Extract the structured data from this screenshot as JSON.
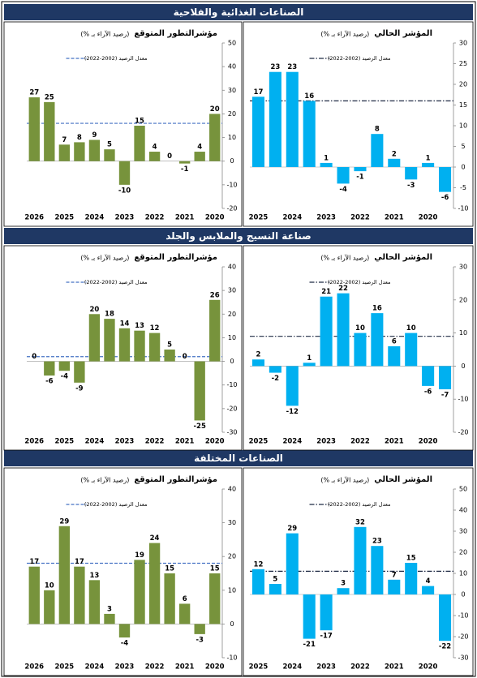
{
  "sections": [
    {
      "title": "الصناعات الغذائية والفلاحية"
    },
    {
      "title": "صناعة النسيج والملابس والجلد"
    },
    {
      "title": "الصناعات المختلفة"
    }
  ],
  "chart_data": [
    {
      "type": "bar",
      "title": "مؤشرالتطور المتوقع",
      "subtitle": "(رصيد الآراء بـ %)",
      "color": "#77933c",
      "categories": [
        "2026",
        null,
        "2025",
        null,
        "2024",
        null,
        "2023",
        null,
        "2022",
        null,
        "2021",
        null,
        "2020"
      ],
      "values": [
        27,
        25,
        7,
        8,
        9,
        5,
        -10,
        15,
        4,
        0,
        -1,
        4,
        20
      ],
      "ylim": [
        -20,
        50
      ],
      "yticks": [
        -20,
        -10,
        0,
        10,
        20,
        30,
        40,
        50
      ],
      "reference_line": {
        "name": "معدل الرصيد (2002-2022)",
        "value": 16,
        "color": "#4472c4",
        "style": "dashed"
      }
    },
    {
      "type": "bar",
      "title": "المؤشر الحالي",
      "subtitle": "(رصيد الآراء بـ %)",
      "color": "#00b0f0",
      "categories": [
        "2025",
        null,
        "2024",
        null,
        "2023",
        null,
        "2022",
        null,
        "2021",
        null,
        "2020",
        null
      ],
      "values": [
        17,
        23,
        23,
        16,
        1,
        -4,
        -1,
        8,
        2,
        -3,
        1,
        -6
      ],
      "ylim": [
        -10,
        30
      ],
      "yticks": [
        -10,
        -5,
        0,
        5,
        10,
        15,
        20,
        25,
        30
      ],
      "reference_line": {
        "name": "معدل الرصيد (2002-2022)",
        "value": 16,
        "color": "#1f2a44",
        "style": "dashdot"
      }
    },
    {
      "type": "bar",
      "title": "مؤشرالتطور المتوقع",
      "subtitle": "(رصيد الآراء بـ %)",
      "color": "#77933c",
      "categories": [
        "2026",
        null,
        "2025",
        null,
        "2024",
        null,
        "2023",
        null,
        "2022",
        null,
        "2021",
        null,
        "2020"
      ],
      "values": [
        0,
        -6,
        -4,
        -9,
        20,
        18,
        14,
        13,
        12,
        5,
        0,
        -25,
        26
      ],
      "ylim": [
        -30,
        40
      ],
      "yticks": [
        -30,
        -20,
        -10,
        0,
        10,
        20,
        30,
        40
      ],
      "reference_line": {
        "name": "معدل الرصيد (2002-2022)",
        "value": 2,
        "color": "#4472c4",
        "style": "dashed"
      }
    },
    {
      "type": "bar",
      "title": "المؤشر الحالي",
      "subtitle": "(رصيد الآراء بـ %)",
      "color": "#00b0f0",
      "categories": [
        "2025",
        null,
        "2024",
        null,
        "2023",
        null,
        "2022",
        null,
        "2021",
        null,
        "2020",
        null
      ],
      "values": [
        2,
        -2,
        -12,
        1,
        21,
        22,
        10,
        16,
        6,
        10,
        -6,
        -7
      ],
      "ylim": [
        -20,
        30
      ],
      "yticks": [
        -20,
        -10,
        0,
        10,
        20,
        30
      ],
      "reference_line": {
        "name": "معدل الرصيد (2002-2022)",
        "value": 9,
        "color": "#1f2a44",
        "style": "dashdot"
      }
    },
    {
      "type": "bar",
      "title": "مؤشرالتطور المتوقع",
      "subtitle": "(رصيد الآراء بـ %)",
      "color": "#77933c",
      "categories": [
        "2026",
        null,
        "2025",
        null,
        "2024",
        null,
        "2023",
        null,
        "2022",
        null,
        "2021",
        null,
        "2020"
      ],
      "values": [
        17,
        10,
        29,
        17,
        13,
        3,
        -4,
        19,
        24,
        15,
        6,
        -3,
        15
      ],
      "ylim": [
        -10,
        40
      ],
      "yticks": [
        -10,
        0,
        10,
        20,
        30,
        40
      ],
      "reference_line": {
        "name": "معدل الرصيد (2002-2022)",
        "value": 18,
        "color": "#4472c4",
        "style": "dashed"
      }
    },
    {
      "type": "bar",
      "title": "المؤشر الحالي",
      "subtitle": "(رصيد الآراء بـ %)",
      "color": "#00b0f0",
      "categories": [
        "2025",
        null,
        "2024",
        null,
        "2023",
        null,
        "2022",
        null,
        "2021",
        null,
        "2020",
        null
      ],
      "values": [
        12,
        5,
        29,
        -21,
        -17,
        3,
        32,
        23,
        7,
        15,
        4,
        -22
      ],
      "ylim": [
        -30,
        50
      ],
      "yticks": [
        -30,
        -20,
        -10,
        0,
        10,
        20,
        30,
        40,
        50
      ],
      "reference_line": {
        "name": "معدل الرصيد (2002-2022)",
        "value": 11,
        "color": "#1f2a44",
        "style": "dashdot"
      }
    }
  ]
}
